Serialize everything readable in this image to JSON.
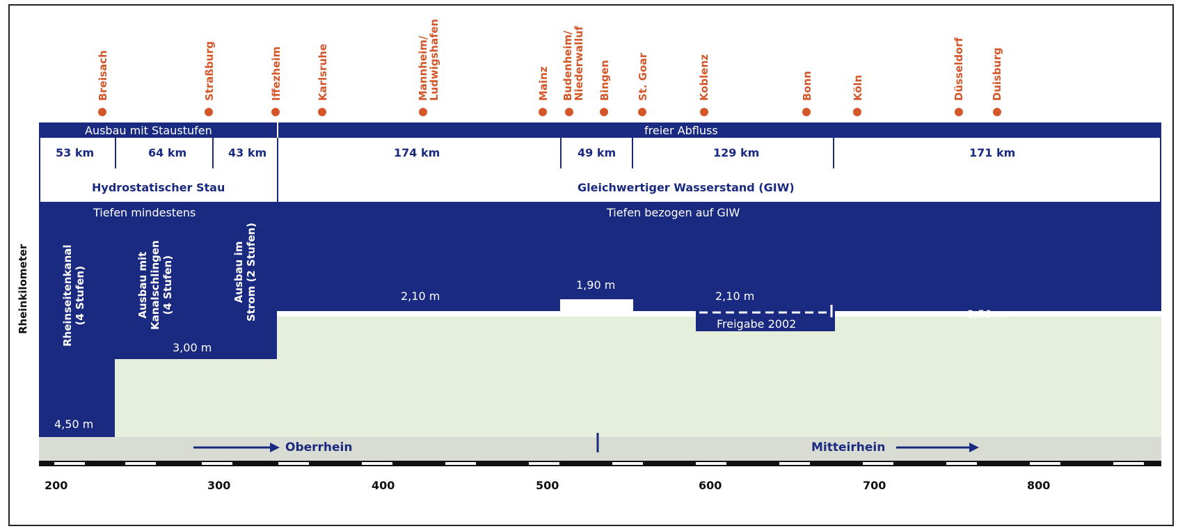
{
  "cities": [
    "Breisach",
    "Straßburg",
    "Iffezheim",
    "Karlsruhe",
    "Mannheim/\nLudwigshafen",
    "Mainz",
    "Budenheim/\nNiederwalluf",
    "Bingen",
    "St. Goar",
    "Koblenz",
    "Bonn",
    "Köln",
    "Düsseldorf",
    "Duisburg"
  ],
  "bands": {
    "left_header": "Ausbau mit Staustufen",
    "right_header": "freier Abfluss",
    "left_stau": "Hydrostatischer Stau",
    "right_stau": "Gleichwertiger Wasserstand (GIW)",
    "left_depth_header": "Tiefen mindestens",
    "right_depth_header": "Tiefen bezogen auf GIW"
  },
  "segments_km": [
    "53 km",
    "64 km",
    "43 km",
    "174 km",
    "49 km",
    "129 km",
    "171 km"
  ],
  "sections": [
    "Rheinseitenkanal\n(4 Stufen)",
    "Ausbau mit\nKanalschlingen\n(4 Stufen)",
    "Ausbau im\nStrom (2 Stufen)"
  ],
  "depths": [
    "4,50 m",
    "3,00 m",
    "2,10 m",
    "1,90 m",
    "2,10 m",
    "2,50 m"
  ],
  "freigabe": "Freigabe 2002",
  "regions": {
    "upper": "Oberrhein",
    "middle": "Mitteirhein"
  },
  "y_axis_label": "Rheinkilometer",
  "x_ticks": [
    "200",
    "300",
    "400",
    "500",
    "600",
    "700",
    "800"
  ],
  "colors": {
    "navy": "#1a2a80",
    "orange": "#d4572a",
    "light_green": "#e6efdc",
    "grey_strip": "#d8dcd2"
  }
}
